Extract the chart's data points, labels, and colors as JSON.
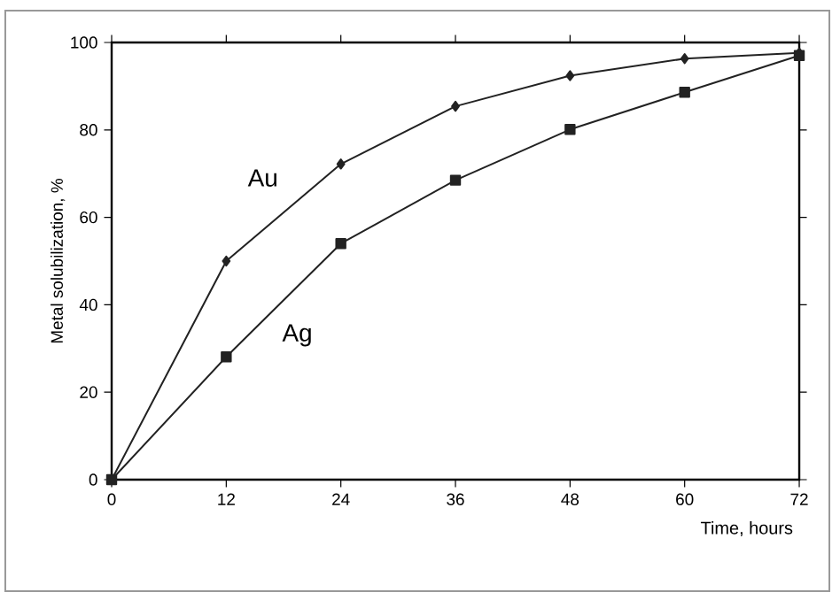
{
  "chart_data": {
    "type": "line",
    "xlabel": "Time, hours",
    "ylabel": "Metal solubilization, %",
    "x": [
      0,
      12,
      24,
      36,
      48,
      60,
      72
    ],
    "series": [
      {
        "name": "Au",
        "color": "#222222",
        "marker": "diamond",
        "values": [
          0,
          50,
          72.2,
          85.4,
          92.4,
          96.3,
          97.6
        ]
      },
      {
        "name": "Ag",
        "color": "#222222",
        "marker": "square",
        "values": [
          0,
          28.1,
          54,
          68.5,
          80.1,
          88.6,
          97
        ]
      }
    ],
    "xlim": [
      0,
      72
    ],
    "ylim": [
      0,
      100
    ],
    "xticks": [
      0,
      12,
      24,
      36,
      48,
      60,
      72
    ],
    "yticks": [
      0,
      20,
      40,
      60,
      80,
      100
    ],
    "grid": false,
    "line_style": "solid"
  }
}
